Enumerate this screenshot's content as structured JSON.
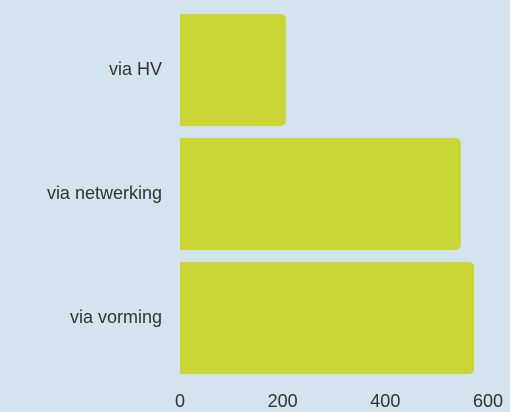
{
  "chart_data": {
    "type": "bar",
    "orientation": "horizontal",
    "categories": [
      "via HV",
      "via netwerking",
      "via vorming"
    ],
    "values": [
      206,
      547,
      573
    ],
    "color": "#c9d534",
    "xlim": [
      0,
      600
    ],
    "xticks": [
      0,
      200,
      400,
      600
    ],
    "grid": false
  }
}
